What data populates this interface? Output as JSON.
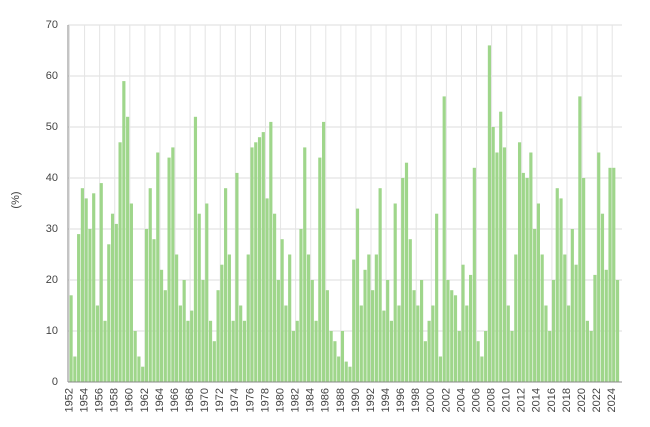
{
  "chart_data": {
    "type": "bar",
    "y_label": "(%)",
    "color": "#9fd68b",
    "grid": true,
    "xlim": [
      1951.8,
      2025.3
    ],
    "ylim": [
      0,
      70
    ],
    "yticks": [
      0,
      10,
      20,
      30,
      40,
      50,
      60,
      70
    ],
    "xticks": [
      1952,
      1954,
      1956,
      1958,
      1960,
      1962,
      1964,
      1966,
      1968,
      1970,
      1972,
      1974,
      1976,
      1978,
      1980,
      1982,
      1984,
      1986,
      1988,
      1990,
      1992,
      1994,
      1996,
      1998,
      2000,
      2002,
      2004,
      2006,
      2008,
      2010,
      2012,
      2014,
      2016,
      2018,
      2020,
      2022,
      2024
    ],
    "x": [
      1952,
      1952.5,
      1953,
      1953.5,
      1954,
      1954.5,
      1955,
      1955.5,
      1956,
      1956.5,
      1957,
      1957.5,
      1958,
      1958.5,
      1959,
      1959.5,
      1960,
      1960.5,
      1961,
      1961.5,
      1962,
      1962.5,
      1963,
      1963.5,
      1964,
      1964.5,
      1965,
      1965.5,
      1966,
      1966.5,
      1967,
      1967.5,
      1968,
      1968.5,
      1969,
      1969.5,
      1970,
      1970.5,
      1971,
      1971.5,
      1972,
      1972.5,
      1973,
      1973.5,
      1974,
      1974.5,
      1975,
      1975.5,
      1976,
      1976.5,
      1977,
      1977.5,
      1978,
      1978.5,
      1979,
      1979.5,
      1980,
      1980.5,
      1981,
      1981.5,
      1982,
      1982.5,
      1983,
      1983.5,
      1984,
      1984.5,
      1985,
      1985.5,
      1986,
      1986.5,
      1987,
      1987.5,
      1988,
      1988.5,
      1989,
      1989.5,
      1990,
      1990.5,
      1991,
      1991.5,
      1992,
      1992.5,
      1993,
      1993.5,
      1994,
      1994.5,
      1995,
      1995.5,
      1996,
      1996.5,
      1997,
      1997.5,
      1998,
      1998.5,
      1999,
      1999.5,
      2000,
      2000.5,
      2001,
      2001.5,
      2002,
      2002.5,
      2003,
      2003.5,
      2004,
      2004.5,
      2005,
      2005.5,
      2006,
      2006.5,
      2007,
      2007.5,
      2008,
      2008.5,
      2009,
      2009.5,
      2010,
      2010.5,
      2011,
      2011.5,
      2012,
      2012.5,
      2013,
      2013.5,
      2014,
      2014.5,
      2015,
      2015.5,
      2016,
      2016.5,
      2017,
      2017.5,
      2018,
      2018.5,
      2019,
      2019.5,
      2020,
      2020.5,
      2021,
      2021.5,
      2022,
      2022.5,
      2023,
      2023.5,
      2024,
      2024.5
    ],
    "values": [
      17,
      5,
      29,
      38,
      36,
      30,
      37,
      15,
      39,
      12,
      27,
      33,
      31,
      47,
      59,
      52,
      35,
      10,
      5,
      3,
      30,
      38,
      28,
      45,
      22,
      18,
      44,
      46,
      25,
      15,
      20,
      12,
      14,
      52,
      33,
      20,
      35,
      12,
      8,
      18,
      23,
      38,
      25,
      12,
      41,
      15,
      12,
      25,
      46,
      47,
      48,
      49,
      36,
      51,
      33,
      20,
      28,
      15,
      25,
      10,
      12,
      30,
      46,
      25,
      20,
      12,
      44,
      51,
      18,
      10,
      8,
      5,
      10,
      4,
      3,
      24,
      34,
      15,
      22,
      25,
      18,
      25,
      38,
      14,
      20,
      12,
      35,
      15,
      40,
      43,
      28,
      18,
      15,
      20,
      8,
      12,
      15,
      33,
      5,
      56,
      20,
      18,
      17,
      10,
      23,
      15,
      21,
      42,
      8,
      5,
      10,
      66,
      50,
      45,
      53,
      46,
      15,
      10,
      25,
      47,
      41,
      40,
      45,
      30,
      35,
      25,
      15,
      10,
      20,
      38,
      36,
      25,
      15,
      30,
      23,
      56,
      40,
      12,
      10,
      21,
      45,
      33,
      22,
      42,
      42,
      20
    ]
  }
}
